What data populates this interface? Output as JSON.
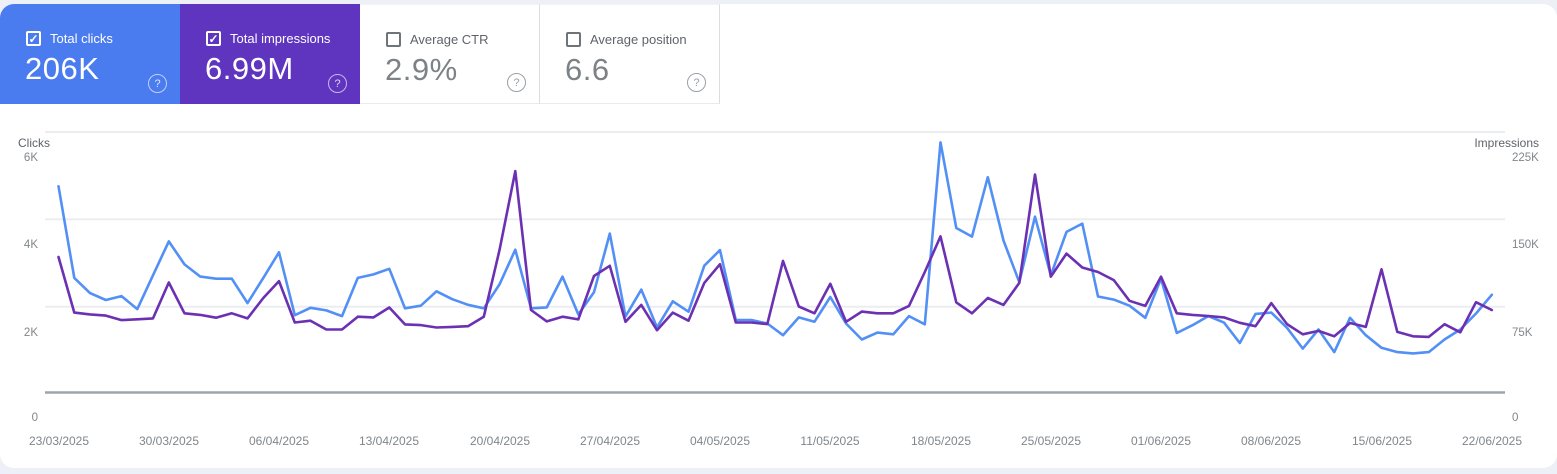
{
  "page": {
    "bg": "#edf0f6",
    "panel_bg": "#ffffff",
    "checkmark_glyph": "✓",
    "help_glyph": "?"
  },
  "cards": [
    {
      "label": "Total clicks",
      "value": "206K",
      "checked": true,
      "bg": "#4a7cf0"
    },
    {
      "label": "Total impressions",
      "value": "6.99M",
      "checked": true,
      "bg": "#5f35c0"
    },
    {
      "label": "Average CTR",
      "value": "2.9%",
      "checked": false,
      "bg": "#ffffff"
    },
    {
      "label": "Average position",
      "value": "6.6",
      "checked": false,
      "bg": "#ffffff"
    }
  ],
  "chart": {
    "left_axis": {
      "title": "Clicks",
      "ticks": [
        "6K",
        "4K",
        "2K",
        "0"
      ]
    },
    "right_axis": {
      "title": "Impressions",
      "ticks": [
        "225K",
        "150K",
        "75K",
        "0"
      ]
    },
    "x_labels": [
      "23/03/2025",
      "30/03/2025",
      "06/04/2025",
      "13/04/2025",
      "20/04/2025",
      "27/04/2025",
      "04/05/2025",
      "11/05/2025",
      "18/05/2025",
      "25/05/2025",
      "01/06/2025",
      "08/06/2025",
      "15/06/2025",
      "22/06/2025"
    ]
  },
  "chart_data": {
    "type": "line",
    "x_interval": "daily",
    "x_start": "23/03/2025",
    "x_end": "22/06/2025",
    "x_tick_labels": [
      "23/03/2025",
      "30/03/2025",
      "06/04/2025",
      "13/04/2025",
      "20/04/2025",
      "27/04/2025",
      "04/05/2025",
      "11/05/2025",
      "18/05/2025",
      "25/05/2025",
      "01/06/2025",
      "08/06/2025",
      "15/06/2025",
      "22/06/2025"
    ],
    "grid": "horizontal",
    "series": [
      {
        "name": "Clicks",
        "color": "#5290f5",
        "axis": "left",
        "axis_range": [
          0,
          6000
        ],
        "values": [
          4750,
          2640,
          2290,
          2130,
          2220,
          1920,
          2700,
          3480,
          2950,
          2670,
          2620,
          2620,
          2060,
          2640,
          3230,
          1780,
          1950,
          1890,
          1760,
          2640,
          2720,
          2850,
          1940,
          2000,
          2330,
          2150,
          2020,
          1940,
          2490,
          3290,
          1940,
          1960,
          2670,
          1800,
          2310,
          3660,
          1750,
          2370,
          1500,
          2100,
          1860,
          2920,
          3280,
          1670,
          1670,
          1590,
          1320,
          1730,
          1630,
          2200,
          1590,
          1220,
          1380,
          1340,
          1760,
          1570,
          5760,
          3790,
          3590,
          4960,
          3500,
          2540,
          4050,
          2700,
          3700,
          3890,
          2210,
          2140,
          2000,
          1720,
          2620,
          1370,
          1550,
          1760,
          1610,
          1140,
          1810,
          1840,
          1490,
          1010,
          1450,
          930,
          1720,
          1320,
          1030,
          930,
          900,
          930,
          1220,
          1450,
          1820,
          2250
        ]
      },
      {
        "name": "Impressions",
        "color": "#6c31b2",
        "axis": "right",
        "axis_range": [
          0,
          225000
        ],
        "values": [
          117000,
          69000,
          67500,
          66400,
          62500,
          63200,
          64000,
          95000,
          68400,
          67000,
          64600,
          68400,
          64000,
          81600,
          96200,
          60500,
          62000,
          54400,
          54400,
          65500,
          64900,
          73400,
          58800,
          58200,
          56100,
          56700,
          57300,
          65500,
          123000,
          191200,
          71300,
          61400,
          65500,
          63100,
          100600,
          109400,
          61100,
          75700,
          53800,
          69000,
          62000,
          94700,
          110800,
          60500,
          60500,
          59100,
          113700,
          74300,
          68400,
          93900,
          61100,
          69900,
          68400,
          68400,
          74800,
          104100,
          134800,
          77800,
          68400,
          81600,
          75700,
          94700,
          188300,
          100000,
          120000,
          108000,
          104100,
          97100,
          79200,
          74800,
          100000,
          68400,
          67000,
          66100,
          64900,
          60200,
          57300,
          77200,
          59100,
          50300,
          53200,
          48500,
          60000,
          56700,
          106400,
          52300,
          48500,
          48000,
          59000,
          52000,
          78000,
          71300
        ]
      }
    ]
  }
}
